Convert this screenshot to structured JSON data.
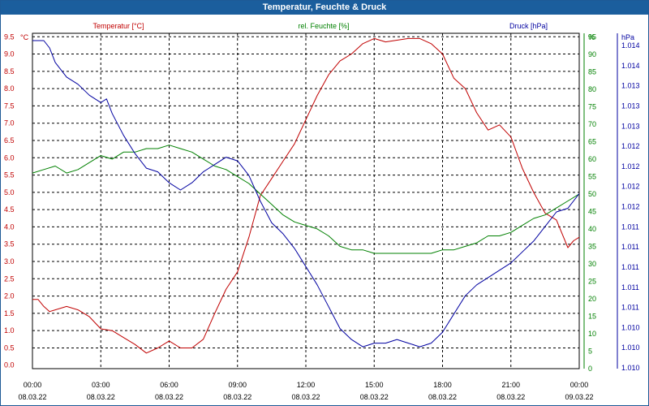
{
  "window": {
    "title": "Temperatur, Feuchte & Druck"
  },
  "chart_data": {
    "type": "line",
    "title": "Temperatur, Feuchte & Druck",
    "grid": true,
    "legend": "top, above each axis",
    "x": {
      "range": [
        "2022-03-08 00:00",
        "2022-03-09 00:00"
      ],
      "ticks": [
        {
          "time": "00:00",
          "date": "08.03.22"
        },
        {
          "time": "03:00",
          "date": "08.03.22"
        },
        {
          "time": "06:00",
          "date": "08.03.22"
        },
        {
          "time": "09:00",
          "date": "08.03.22"
        },
        {
          "time": "12:00",
          "date": "08.03.22"
        },
        {
          "time": "15:00",
          "date": "08.03.22"
        },
        {
          "time": "18:00",
          "date": "08.03.22"
        },
        {
          "time": "21:00",
          "date": "08.03.22"
        },
        {
          "time": "00:00",
          "date": "09.03.22"
        }
      ]
    },
    "axes": {
      "left": {
        "unit": "°C",
        "range": [
          -0.1,
          9.6
        ],
        "tick_labels": [
          "0.0",
          "0.5",
          "1.0",
          "1.5",
          "2.0",
          "2.5",
          "3.0",
          "3.5",
          "4.0",
          "4.5",
          "5.0",
          "5.5",
          "6.0",
          "6.5",
          "7.0",
          "7.5",
          "8.0",
          "8.5",
          "9.0",
          "9.5"
        ],
        "color": "#c00000"
      },
      "middle": {
        "unit": "%",
        "range": [
          0,
          96
        ],
        "tick_labels": [
          "0",
          "5",
          "10",
          "15",
          "20",
          "25",
          "30",
          "35",
          "40",
          "45",
          "50",
          "55",
          "60",
          "65",
          "70",
          "75",
          "80",
          "85",
          "90",
          "95"
        ],
        "color": "#008000"
      },
      "right": {
        "unit": "hPa",
        "range": [
          1009.6,
          1014.2
        ],
        "tick_labels": [
          "1.010",
          "1.010",
          "1.010",
          "1.011",
          "1.011",
          "1.011",
          "1.011",
          "1.011",
          "1.012",
          "1.012",
          "1.012",
          "1.012",
          "1.013",
          "1.013",
          "1.013",
          "1.014",
          "1.014"
        ],
        "color": "#0000a0"
      }
    },
    "series": [
      {
        "name": "Temperatur [°C]",
        "axis": "left",
        "color": "#c00000",
        "x_hours": [
          0,
          0.25,
          0.5,
          0.75,
          1,
          1.5,
          2,
          2.5,
          3,
          3.5,
          4,
          4.5,
          5,
          5.5,
          6,
          6.5,
          7,
          7.5,
          8,
          8.5,
          9,
          9.5,
          10,
          10.5,
          11,
          11.5,
          12,
          12.5,
          13,
          13.5,
          14,
          14.5,
          15,
          15.5,
          16,
          16.5,
          17,
          17.5,
          18,
          18.5,
          19,
          19.5,
          20,
          20.5,
          21,
          21.5,
          22,
          22.5,
          23,
          23.5,
          23.75,
          24
        ],
        "values": [
          1.9,
          1.9,
          1.7,
          1.55,
          1.6,
          1.7,
          1.6,
          1.4,
          1.05,
          1.0,
          0.8,
          0.6,
          0.35,
          0.5,
          0.7,
          0.5,
          0.5,
          0.75,
          1.5,
          2.2,
          2.7,
          3.7,
          4.9,
          5.4,
          5.9,
          6.4,
          7.1,
          7.8,
          8.4,
          8.8,
          9.0,
          9.3,
          9.45,
          9.35,
          9.4,
          9.45,
          9.45,
          9.3,
          9.0,
          8.3,
          8.0,
          7.3,
          6.8,
          6.95,
          6.6,
          5.7,
          5.0,
          4.4,
          4.2,
          3.4,
          3.6,
          3.7
        ]
      },
      {
        "name": "rel. Feuchte [%]",
        "axis": "middle",
        "color": "#008000",
        "x_hours": [
          0,
          0.5,
          1,
          1.5,
          2,
          2.5,
          3,
          3.5,
          4,
          4.5,
          5,
          5.5,
          6,
          6.5,
          7,
          7.5,
          8,
          8.5,
          9,
          9.5,
          10,
          10.5,
          11,
          11.5,
          12,
          12.5,
          13,
          13.5,
          14,
          14.5,
          15,
          15.5,
          16,
          16.5,
          17,
          17.5,
          18,
          18.5,
          19,
          19.5,
          20,
          20.5,
          21,
          21.5,
          22,
          22.5,
          23,
          23.5,
          24
        ],
        "values": [
          56,
          57,
          58,
          56,
          57,
          59,
          61,
          60,
          62,
          62,
          63,
          63,
          64,
          63,
          62,
          60,
          58,
          57,
          55,
          53,
          50,
          47,
          44,
          42,
          41,
          40,
          38,
          35,
          34,
          34,
          33,
          33,
          33,
          33,
          33,
          33,
          34,
          34,
          35,
          36,
          38,
          38,
          39,
          41,
          43,
          44,
          46,
          48,
          50
        ]
      },
      {
        "name": "Druck [hPa]",
        "axis": "right",
        "color": "#0000a0",
        "x_hours": [
          0,
          0.25,
          0.5,
          0.75,
          1,
          1.5,
          2,
          2.5,
          3,
          3.25,
          3.5,
          4,
          4.5,
          5,
          5.5,
          6,
          6.5,
          7,
          7.5,
          8,
          8.5,
          9,
          9.5,
          10,
          10.5,
          11,
          11.5,
          12,
          12.5,
          13,
          13.5,
          14,
          14.5,
          15,
          15.5,
          16,
          16.5,
          17,
          17.5,
          18,
          18.5,
          19,
          19.5,
          20,
          20.5,
          21,
          21.5,
          22,
          22.5,
          23,
          23.5,
          24
        ],
        "values": [
          1014.1,
          1014.1,
          1014.1,
          1014.0,
          1013.8,
          1013.6,
          1013.5,
          1013.35,
          1013.25,
          1013.3,
          1013.1,
          1012.8,
          1012.55,
          1012.35,
          1012.3,
          1012.15,
          1012.05,
          1012.15,
          1012.3,
          1012.4,
          1012.5,
          1012.45,
          1012.25,
          1011.9,
          1011.6,
          1011.45,
          1011.25,
          1011.0,
          1010.75,
          1010.45,
          1010.15,
          1010.0,
          1009.9,
          1009.95,
          1009.95,
          1010.0,
          1009.95,
          1009.9,
          1009.95,
          1010.1,
          1010.35,
          1010.6,
          1010.75,
          1010.85,
          1010.95,
          1011.05,
          1011.2,
          1011.35,
          1011.55,
          1011.75,
          1011.8,
          1012.0
        ]
      }
    ]
  }
}
